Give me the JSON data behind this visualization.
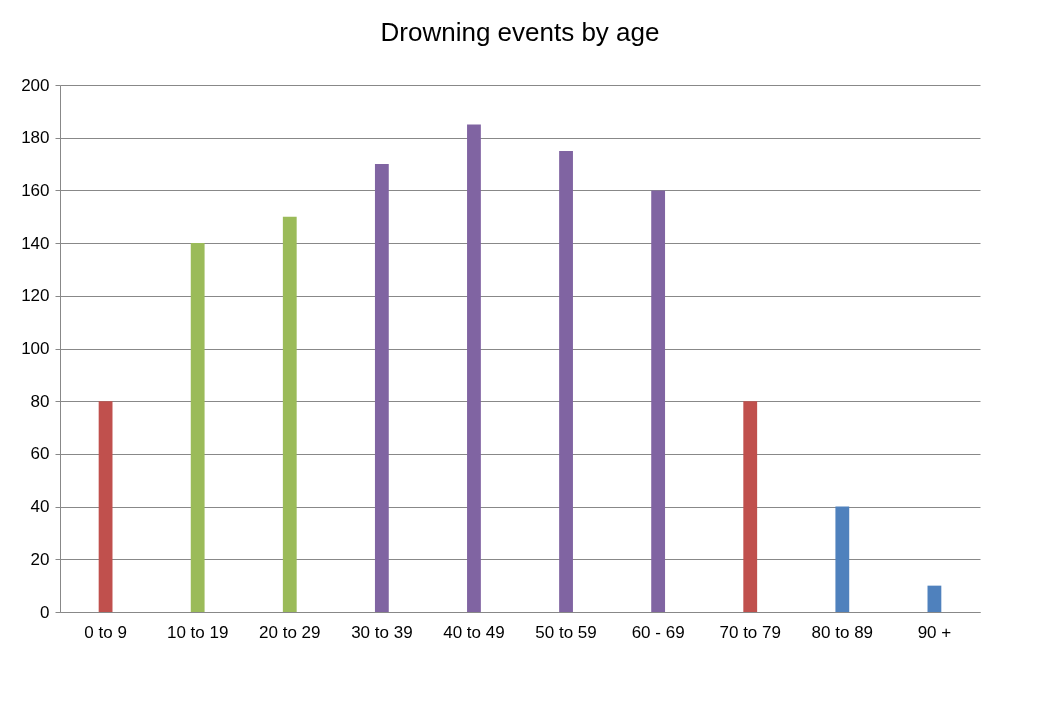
{
  "chart_data": {
    "type": "bar",
    "title": "Drowning events by age",
    "categories": [
      "0 to 9",
      "10 to 19",
      "20 to 29",
      "30 to 39",
      "40 to 49",
      "50 to 59",
      "60 - 69",
      "70 to 79",
      "80 to 89",
      "90 +"
    ],
    "values": [
      80,
      140,
      150,
      170,
      185,
      175,
      160,
      80,
      40,
      10
    ],
    "colors": [
      "#c0504d",
      "#9bbb59",
      "#9bbb59",
      "#8064a2",
      "#8064a2",
      "#8064a2",
      "#8064a2",
      "#c0504d",
      "#4f81bd",
      "#4f81bd"
    ],
    "ylim": [
      0,
      200
    ],
    "yticks": [
      0,
      20,
      40,
      60,
      80,
      100,
      120,
      140,
      160,
      180,
      200
    ],
    "grid": "y"
  }
}
